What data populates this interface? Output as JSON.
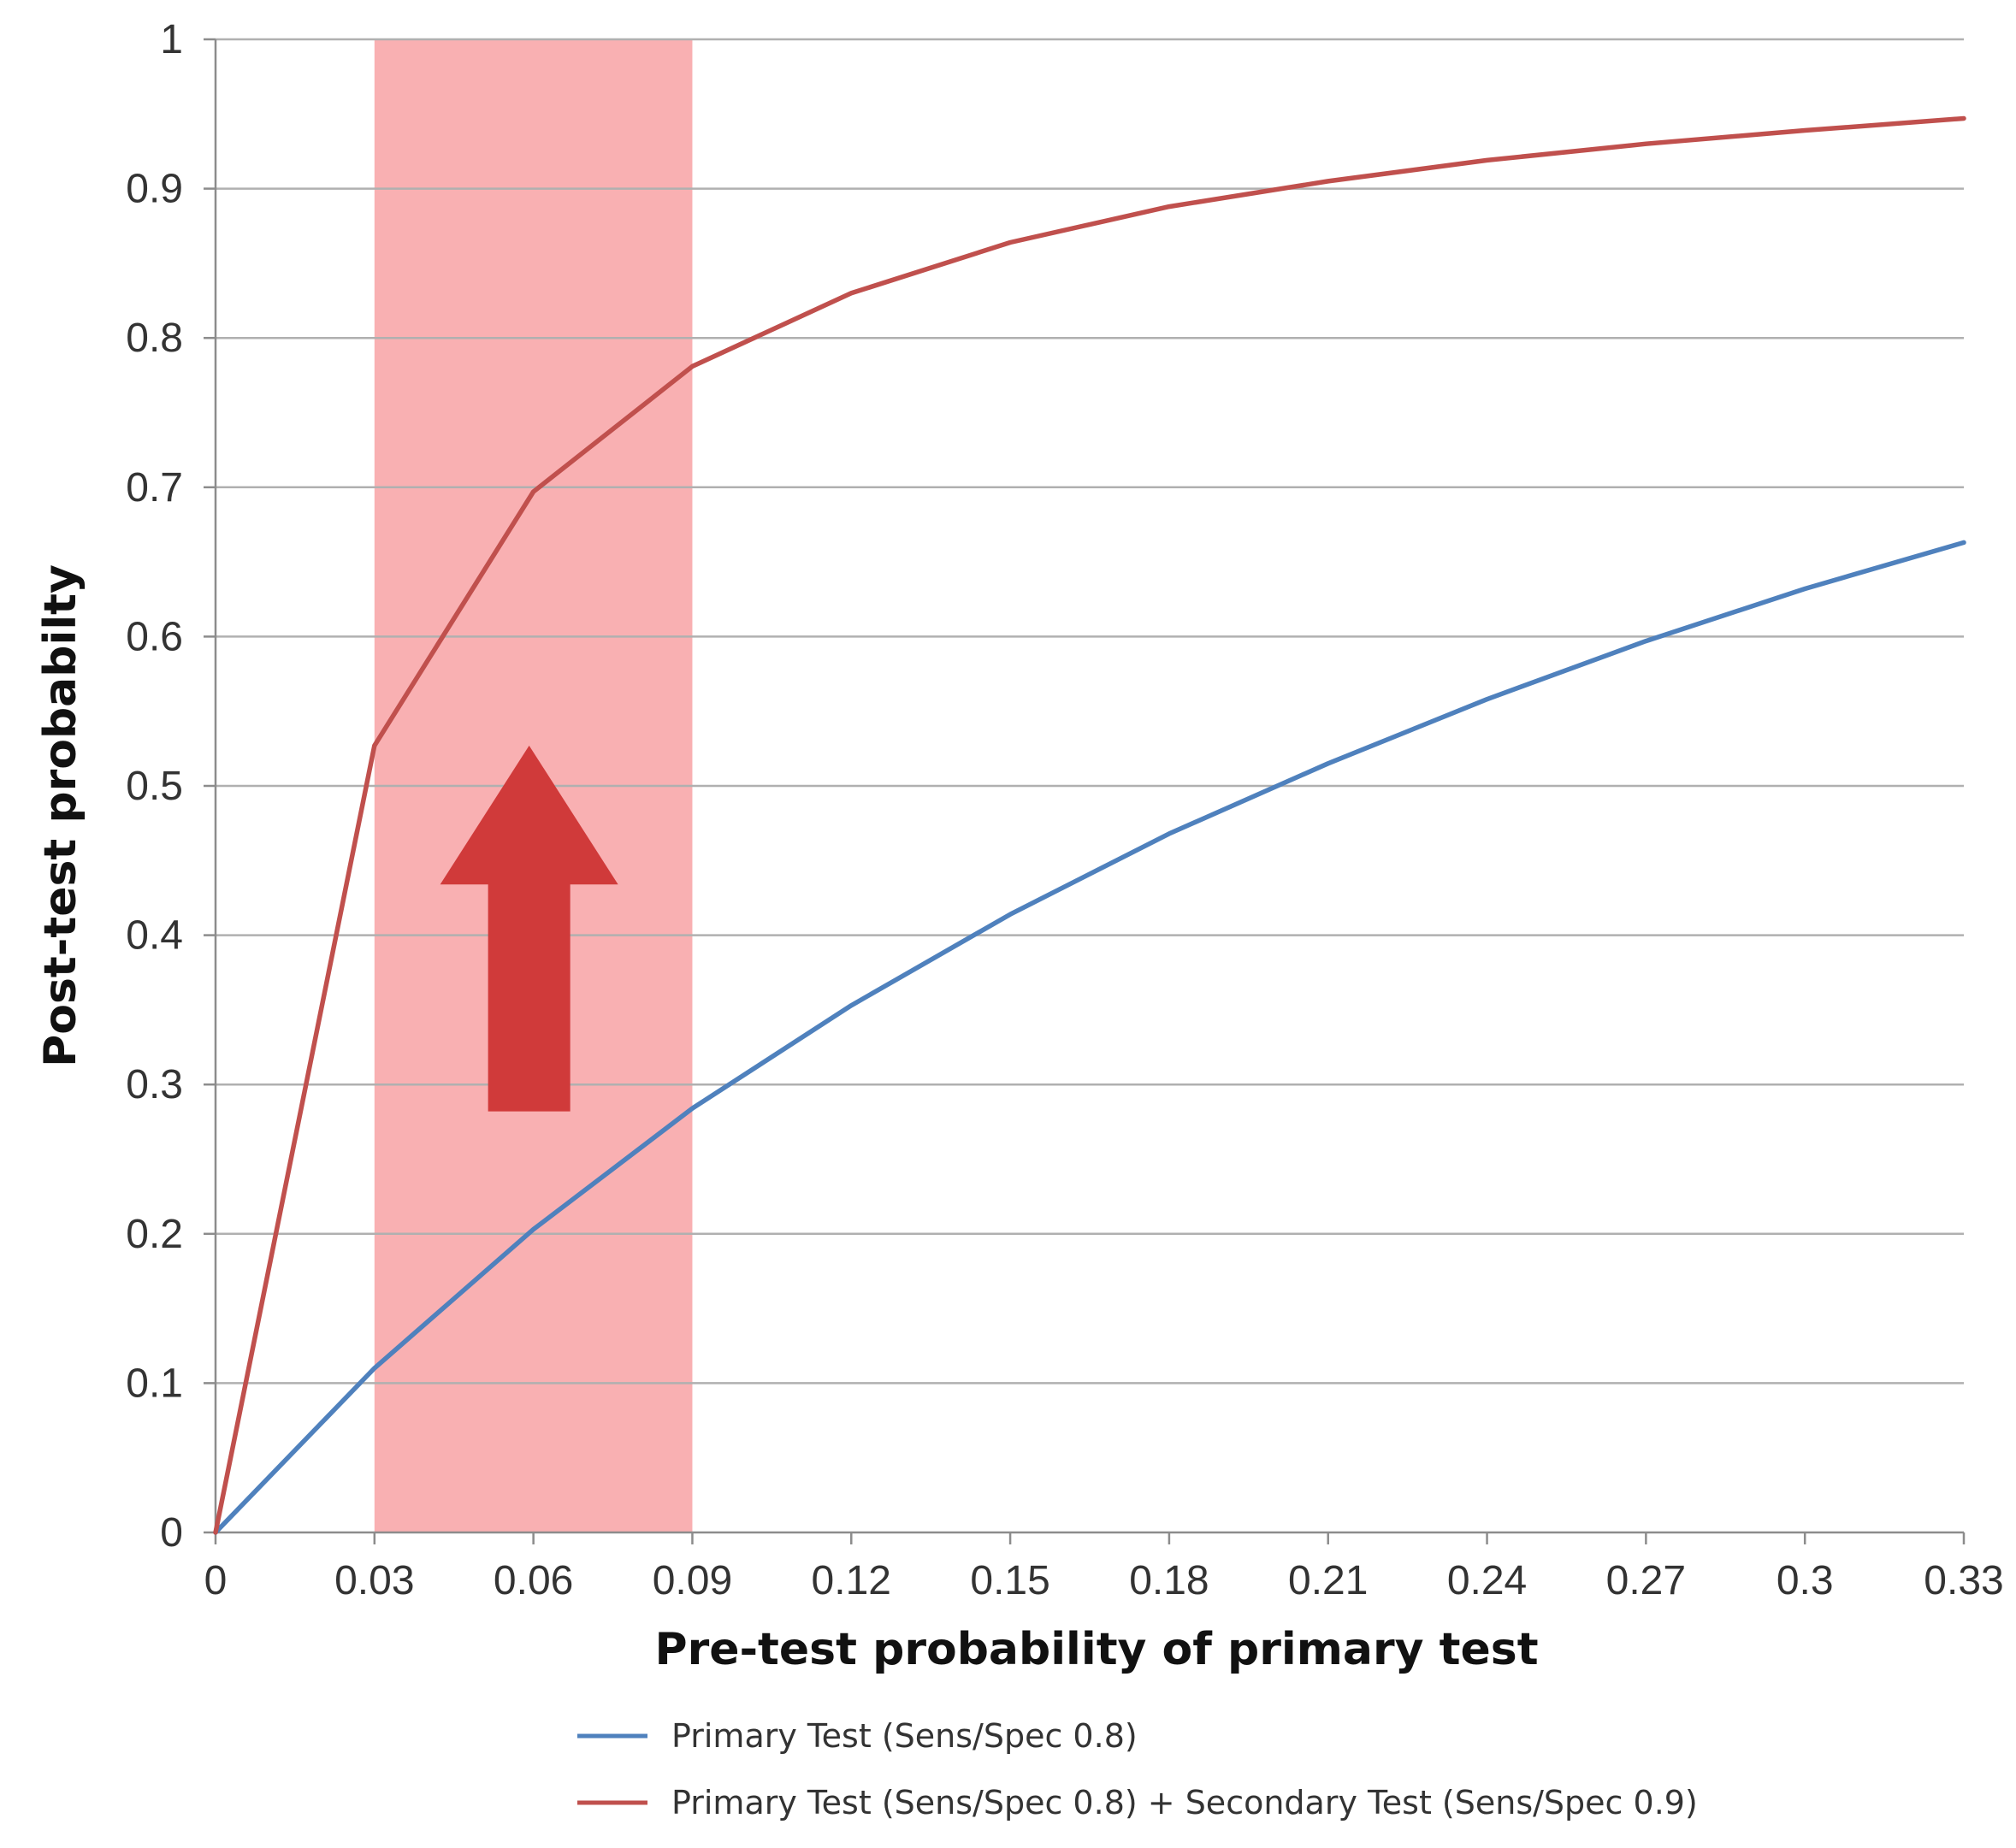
{
  "chart_data": {
    "type": "line",
    "title": "",
    "xlabel": "Pre-test probability of primary test",
    "ylabel": "Post-test probabilty",
    "x_ticks": [
      "0",
      "0.03",
      "0.06",
      "0.09",
      "0.12",
      "0.15",
      "0.18",
      "0.21",
      "0.24",
      "0.27",
      "0.3",
      "0.33"
    ],
    "y_ticks": [
      "0",
      "0.1",
      "0.2",
      "0.3",
      "0.4",
      "0.5",
      "0.6",
      "0.7",
      "0.8",
      "0.9",
      "1"
    ],
    "xlim": [
      0,
      0.33
    ],
    "ylim": [
      0,
      1
    ],
    "grid": "horizontal",
    "legend_position": "bottom",
    "x": [
      0,
      0.03,
      0.06,
      0.09,
      0.12,
      0.15,
      0.18,
      0.21,
      0.24,
      0.27,
      0.3,
      0.33
    ],
    "series": [
      {
        "name": "Primary Test (Sens/Spec 0.8)",
        "color": "#4f81bd",
        "values": [
          0,
          0.11,
          0.203,
          0.284,
          0.353,
          0.414,
          0.468,
          0.515,
          0.558,
          0.597,
          0.632,
          0.663
        ]
      },
      {
        "name": "Primary Test (Sens/Spec 0.8) + Secondary Test (Sens/Spec 0.9)",
        "color": "#c0504d",
        "values": [
          0,
          0.527,
          0.697,
          0.781,
          0.83,
          0.864,
          0.888,
          0.905,
          0.919,
          0.93,
          0.939,
          0.947
        ]
      }
    ],
    "highlight_band": {
      "x_from": 0.03,
      "x_to": 0.09,
      "color": "#f9b0b2"
    },
    "arrow": {
      "direction": "up",
      "color": "#d03a3a"
    },
    "colors": {
      "grid": "#b0b0b0",
      "axis": "#8c8c8c"
    }
  }
}
